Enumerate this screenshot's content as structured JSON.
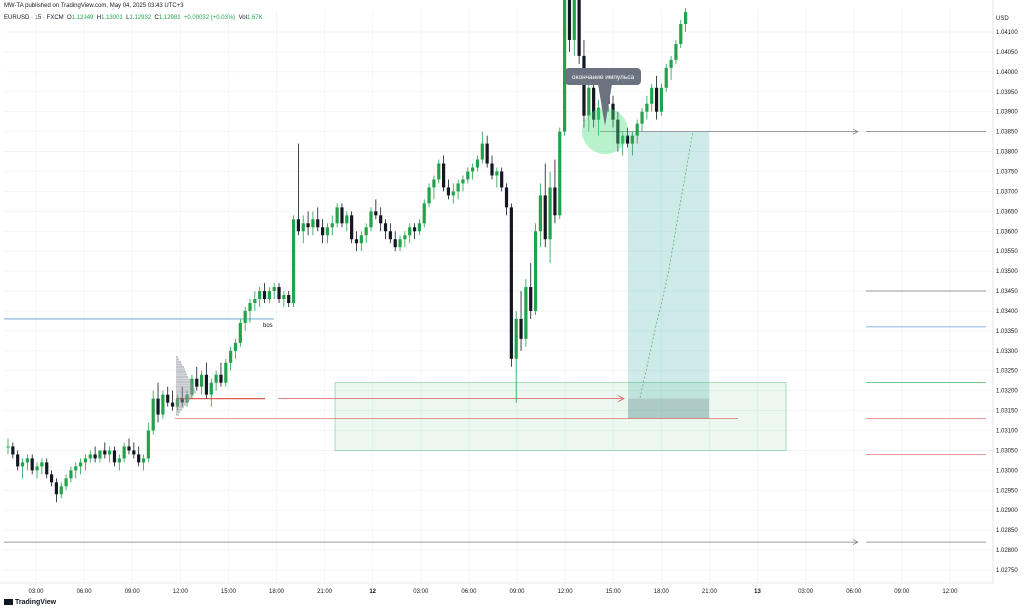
{
  "header": {
    "published": "MW-TA published on TradingView.com, May 04, 2025 03:43 UTC+3"
  },
  "legend": {
    "symbol": "EURUSD · 15 · FXCM",
    "open_label": "O",
    "open": "1.12949",
    "high_label": "H",
    "high": "1.13001",
    "low_label": "L",
    "low": "1.12932",
    "close_label": "C",
    "close": "1.12981",
    "change": "+0.00032 (+0.03%)",
    "vol_label": "Vol",
    "vol": "1.67K"
  },
  "footer": {
    "brand": "TradingView"
  },
  "chart_data": {
    "type": "candlestick",
    "currency": "USD",
    "ylim": [
      1.0273,
      1.0413
    ],
    "y_ticks": [
      "1.04100",
      "1.04050",
      "1.04000",
      "1.03950",
      "1.03900",
      "1.03850",
      "1.03800",
      "1.03750",
      "1.03700",
      "1.03650",
      "1.03600",
      "1.03550",
      "1.03500",
      "1.03450",
      "1.03400",
      "1.03350",
      "1.03300",
      "1.03250",
      "1.03200",
      "1.03150",
      "1.03100",
      "1.03050",
      "1.03000",
      "1.02950",
      "1.02900",
      "1.02850",
      "1.02800",
      "1.02750"
    ],
    "x_ticks": [
      "03:00",
      "06:00",
      "09:00",
      "12:00",
      "15:00",
      "18:00",
      "21:00",
      "12",
      "03:00",
      "06:00",
      "09:00",
      "12:00",
      "15:00",
      "18:00",
      "21:00",
      "13",
      "03:00",
      "06:00",
      "09:00",
      "12:00"
    ],
    "annotations": {
      "callout": "окончание импульса",
      "bos": "bos"
    },
    "levels": {
      "bos_line": 1.0338,
      "red_line": 1.0313,
      "gray_bottom": 1.0282,
      "gray_top": 1.0385
    },
    "zones": {
      "green_box": [
        1.0305,
        1.0322
      ],
      "teal_box": [
        1.0313,
        1.0385
      ]
    },
    "colors": {
      "up": "#22a34a",
      "down": "#131722",
      "green_zone": "#22a34a",
      "teal_zone": "#26a69a",
      "blue_line": "#5b9bd5",
      "red_line": "#e05a5a",
      "callout_bg": "#6b7280"
    },
    "candles": [
      [
        1.0306,
        1.0308,
        1.0304,
        1.0306
      ],
      [
        1.0306,
        1.0307,
        1.0303,
        1.0304
      ],
      [
        1.0304,
        1.0305,
        1.03,
        1.0301
      ],
      [
        1.0301,
        1.0303,
        1.0298,
        1.0302
      ],
      [
        1.0302,
        1.0304,
        1.03,
        1.0303
      ],
      [
        1.0303,
        1.0304,
        1.0299,
        1.03
      ],
      [
        1.03,
        1.0302,
        1.0298,
        1.0301
      ],
      [
        1.0301,
        1.0303,
        1.0299,
        1.0302
      ],
      [
        1.0302,
        1.0303,
        1.0298,
        1.0299
      ],
      [
        1.0299,
        1.03,
        1.0296,
        1.0297
      ],
      [
        1.0297,
        1.0298,
        1.0292,
        1.0294
      ],
      [
        1.0294,
        1.0297,
        1.0293,
        1.0296
      ],
      [
        1.0296,
        1.0299,
        1.0295,
        1.0298
      ],
      [
        1.0298,
        1.0301,
        1.0297,
        1.03
      ],
      [
        1.03,
        1.0302,
        1.0298,
        1.0301
      ],
      [
        1.0301,
        1.0303,
        1.0299,
        1.0302
      ],
      [
        1.0302,
        1.0304,
        1.03,
        1.0303
      ],
      [
        1.0303,
        1.0305,
        1.0302,
        1.0304
      ],
      [
        1.0304,
        1.0306,
        1.0302,
        1.0303
      ],
      [
        1.0303,
        1.0305,
        1.0302,
        1.0305
      ],
      [
        1.0305,
        1.0307,
        1.0303,
        1.0304
      ],
      [
        1.0304,
        1.0306,
        1.0302,
        1.0305
      ],
      [
        1.0305,
        1.0306,
        1.0301,
        1.0302
      ],
      [
        1.0302,
        1.0304,
        1.03,
        1.0303
      ],
      [
        1.0303,
        1.0307,
        1.0302,
        1.0306
      ],
      [
        1.0306,
        1.0308,
        1.0304,
        1.0305
      ],
      [
        1.0305,
        1.0307,
        1.0303,
        1.0304
      ],
      [
        1.0304,
        1.0306,
        1.0301,
        1.0302
      ],
      [
        1.0302,
        1.0304,
        1.03,
        1.0303
      ],
      [
        1.0303,
        1.0312,
        1.0302,
        1.031
      ],
      [
        1.031,
        1.032,
        1.0309,
        1.0318
      ],
      [
        1.0318,
        1.0322,
        1.0312,
        1.0314
      ],
      [
        1.0314,
        1.032,
        1.0313,
        1.0319
      ],
      [
        1.0319,
        1.0321,
        1.0316,
        1.0317
      ],
      [
        1.0317,
        1.032,
        1.0315,
        1.0316
      ],
      [
        1.0316,
        1.0319,
        1.0315,
        1.0318
      ],
      [
        1.0318,
        1.0321,
        1.0316,
        1.0317
      ],
      [
        1.0317,
        1.032,
        1.0316,
        1.0319
      ],
      [
        1.0319,
        1.0324,
        1.0318,
        1.0323
      ],
      [
        1.0323,
        1.0326,
        1.032,
        1.0321
      ],
      [
        1.0321,
        1.0325,
        1.0319,
        1.0324
      ],
      [
        1.0324,
        1.0327,
        1.0318,
        1.0319
      ],
      [
        1.0319,
        1.0323,
        1.0316,
        1.0322
      ],
      [
        1.0322,
        1.0325,
        1.032,
        1.0324
      ],
      [
        1.0324,
        1.0327,
        1.0321,
        1.0322
      ],
      [
        1.0322,
        1.0328,
        1.0321,
        1.0327
      ],
      [
        1.0327,
        1.0331,
        1.0325,
        1.033
      ],
      [
        1.033,
        1.0333,
        1.0328,
        1.0332
      ],
      [
        1.0332,
        1.0338,
        1.0331,
        1.0337
      ],
      [
        1.0337,
        1.0341,
        1.0335,
        1.034
      ],
      [
        1.034,
        1.0343,
        1.0337,
        1.0342
      ],
      [
        1.0342,
        1.0345,
        1.034,
        1.0343
      ],
      [
        1.0343,
        1.0346,
        1.0341,
        1.0345
      ],
      [
        1.0345,
        1.0347,
        1.0342,
        1.0343
      ],
      [
        1.0343,
        1.0346,
        1.0342,
        1.0345
      ],
      [
        1.0345,
        1.0347,
        1.0343,
        1.0346
      ],
      [
        1.0346,
        1.0347,
        1.0342,
        1.0343
      ],
      [
        1.0343,
        1.0345,
        1.0341,
        1.0344
      ],
      [
        1.0344,
        1.0345,
        1.0341,
        1.0342
      ],
      [
        1.0342,
        1.0364,
        1.0341,
        1.0363
      ],
      [
        1.0363,
        1.0382,
        1.0359,
        1.036
      ],
      [
        1.036,
        1.0364,
        1.0357,
        1.0362
      ],
      [
        1.0362,
        1.0365,
        1.0359,
        1.0361
      ],
      [
        1.0361,
        1.0365,
        1.0359,
        1.0363
      ],
      [
        1.0363,
        1.0366,
        1.036,
        1.0361
      ],
      [
        1.0361,
        1.0363,
        1.0357,
        1.0359
      ],
      [
        1.0359,
        1.0362,
        1.0357,
        1.0361
      ],
      [
        1.0361,
        1.0364,
        1.0359,
        1.0362
      ],
      [
        1.0362,
        1.0367,
        1.0361,
        1.0366
      ],
      [
        1.0366,
        1.0367,
        1.0361,
        1.0362
      ],
      [
        1.0362,
        1.0365,
        1.036,
        1.0364
      ],
      [
        1.0364,
        1.0365,
        1.0357,
        1.0358
      ],
      [
        1.0358,
        1.036,
        1.0355,
        1.0357
      ],
      [
        1.0357,
        1.036,
        1.0355,
        1.0359
      ],
      [
        1.0359,
        1.0362,
        1.0357,
        1.0361
      ],
      [
        1.0361,
        1.0366,
        1.036,
        1.0365
      ],
      [
        1.0365,
        1.0368,
        1.0363,
        1.0364
      ],
      [
        1.0364,
        1.0366,
        1.036,
        1.0362
      ],
      [
        1.0362,
        1.0363,
        1.0358,
        1.036
      ],
      [
        1.036,
        1.0362,
        1.0357,
        1.0358
      ],
      [
        1.0358,
        1.036,
        1.0355,
        1.0356
      ],
      [
        1.0356,
        1.0359,
        1.0355,
        1.0358
      ],
      [
        1.0358,
        1.036,
        1.0356,
        1.0359
      ],
      [
        1.0359,
        1.0362,
        1.0357,
        1.0361
      ],
      [
        1.0361,
        1.0362,
        1.0358,
        1.036
      ],
      [
        1.036,
        1.0363,
        1.0359,
        1.0362
      ],
      [
        1.0362,
        1.0368,
        1.0361,
        1.0367
      ],
      [
        1.0367,
        1.0372,
        1.0366,
        1.0371
      ],
      [
        1.0371,
        1.0374,
        1.0368,
        1.0373
      ],
      [
        1.0373,
        1.0378,
        1.0372,
        1.0377
      ],
      [
        1.0377,
        1.0379,
        1.037,
        1.0371
      ],
      [
        1.0371,
        1.0373,
        1.0368,
        1.0369
      ],
      [
        1.0369,
        1.0372,
        1.0367,
        1.037
      ],
      [
        1.037,
        1.0373,
        1.0368,
        1.0372
      ],
      [
        1.0372,
        1.0374,
        1.037,
        1.0373
      ],
      [
        1.0373,
        1.0376,
        1.0372,
        1.0375
      ],
      [
        1.0375,
        1.0377,
        1.0373,
        1.0376
      ],
      [
        1.0376,
        1.0379,
        1.0375,
        1.0378
      ],
      [
        1.0378,
        1.0385,
        1.0377,
        1.0382
      ],
      [
        1.0382,
        1.0384,
        1.0376,
        1.0377
      ],
      [
        1.0377,
        1.0379,
        1.0373,
        1.0374
      ],
      [
        1.0374,
        1.0376,
        1.0371,
        1.0375
      ],
      [
        1.0375,
        1.0376,
        1.037,
        1.0371
      ],
      [
        1.0371,
        1.0372,
        1.0364,
        1.0366
      ],
      [
        1.0366,
        1.0367,
        1.0326,
        1.0328
      ],
      [
        1.0328,
        1.034,
        1.0317,
        1.0338
      ],
      [
        1.0338,
        1.0345,
        1.033,
        1.0333
      ],
      [
        1.0333,
        1.0348,
        1.0331,
        1.0346
      ],
      [
        1.0346,
        1.0352,
        1.0338,
        1.034
      ],
      [
        1.034,
        1.0362,
        1.0339,
        1.036
      ],
      [
        1.036,
        1.0372,
        1.0356,
        1.0369
      ],
      [
        1.0369,
        1.0377,
        1.0356,
        1.0358
      ],
      [
        1.0358,
        1.0375,
        1.0352,
        1.0371
      ],
      [
        1.0371,
        1.0378,
        1.0362,
        1.0364
      ],
      [
        1.0364,
        1.0386,
        1.0363,
        1.0385
      ],
      [
        1.0385,
        1.043,
        1.0384,
        1.0428
      ],
      [
        1.0428,
        1.0433,
        1.0405,
        1.0408
      ],
      [
        1.0408,
        1.0432,
        1.0404,
        1.0427
      ],
      [
        1.0427,
        1.0431,
        1.0402,
        1.0404
      ],
      [
        1.0404,
        1.0408,
        1.0386,
        1.0389
      ],
      [
        1.0389,
        1.0398,
        1.0385,
        1.0396
      ],
      [
        1.0396,
        1.0399,
        1.0386,
        1.0388
      ],
      [
        1.0388,
        1.0393,
        1.0384,
        1.0391
      ],
      [
        1.0391,
        1.0397,
        1.0389,
        1.0395
      ],
      [
        1.0395,
        1.0398,
        1.039,
        1.0392
      ],
      [
        1.0392,
        1.0394,
        1.0386,
        1.0388
      ],
      [
        1.0388,
        1.039,
        1.038,
        1.0382
      ],
      [
        1.0382,
        1.0385,
        1.0379,
        1.0384
      ],
      [
        1.0384,
        1.0386,
        1.0381,
        1.0382
      ],
      [
        1.0382,
        1.0385,
        1.0379,
        1.0384
      ],
      [
        1.0384,
        1.0388,
        1.0382,
        1.0387
      ],
      [
        1.0387,
        1.0391,
        1.0385,
        1.039
      ],
      [
        1.039,
        1.0394,
        1.0388,
        1.0392
      ],
      [
        1.0392,
        1.0397,
        1.039,
        1.0396
      ],
      [
        1.0396,
        1.0399,
        1.0388,
        1.039
      ],
      [
        1.039,
        1.0397,
        1.0389,
        1.0396
      ],
      [
        1.0396,
        1.0402,
        1.0395,
        1.0401
      ],
      [
        1.0401,
        1.0404,
        1.0398,
        1.0403
      ],
      [
        1.0403,
        1.0408,
        1.0402,
        1.0407
      ],
      [
        1.0407,
        1.0413,
        1.0406,
        1.0412
      ],
      [
        1.0412,
        1.0416,
        1.041,
        1.0415
      ]
    ]
  }
}
